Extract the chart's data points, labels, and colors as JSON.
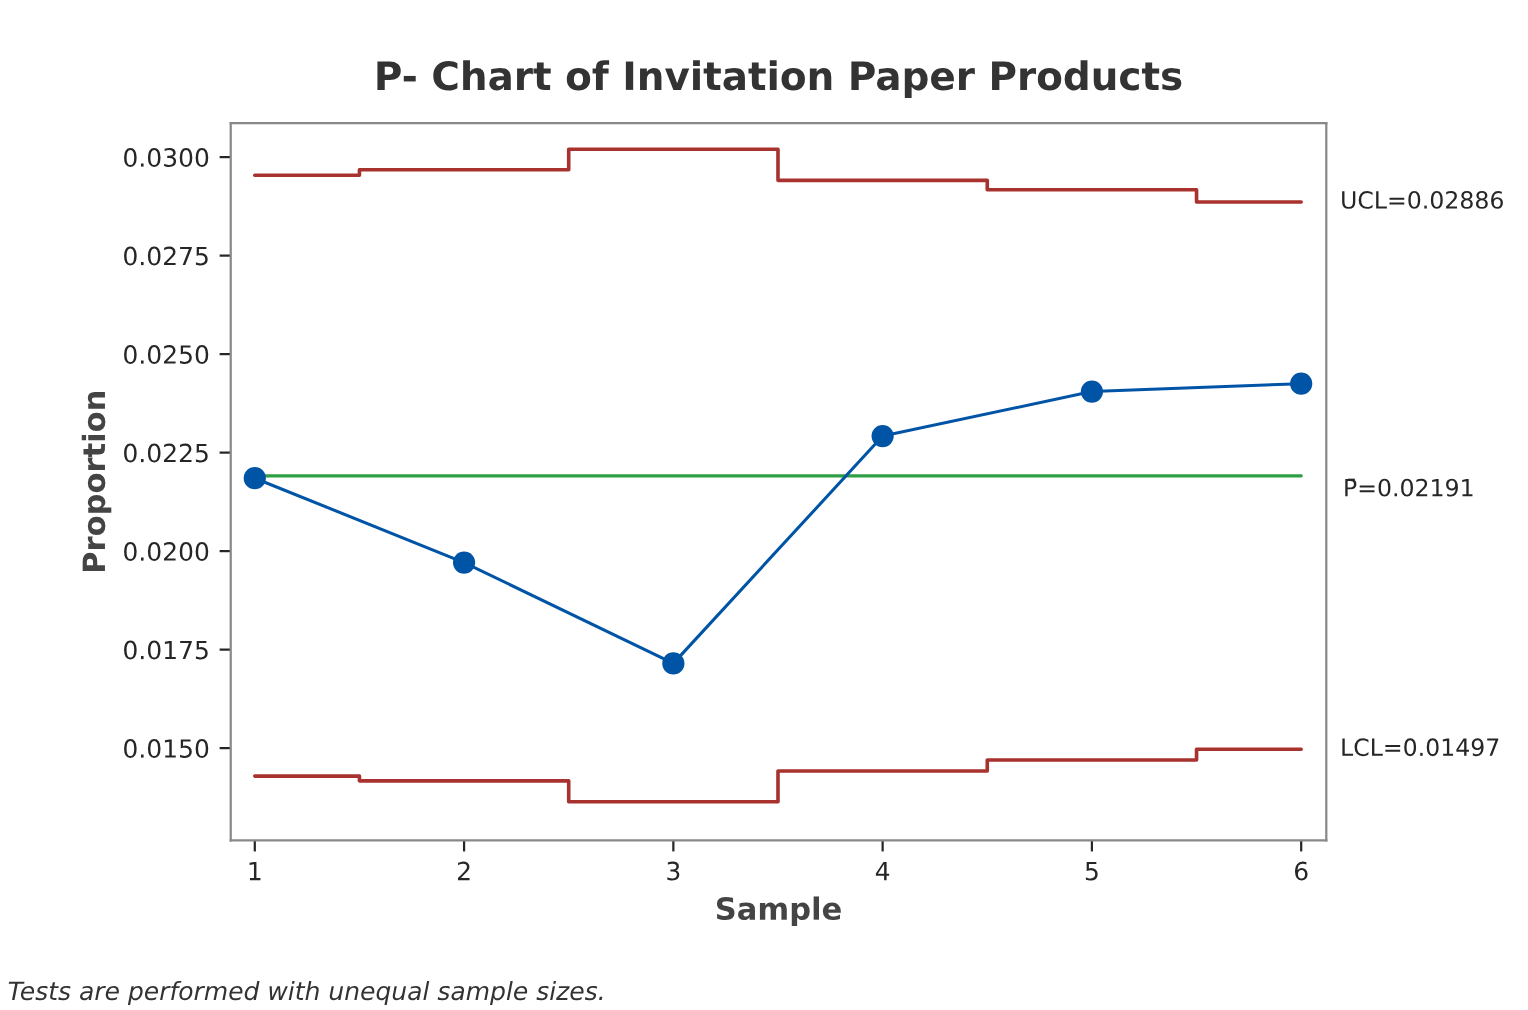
{
  "chart_data": {
    "type": "line",
    "title": "P- Chart of Invitation Paper Products",
    "xlabel": "Sample",
    "ylabel": "Proportion",
    "x": [
      1,
      2,
      3,
      4,
      5,
      6
    ],
    "series": [
      {
        "type": "step",
        "color": "#a8322d",
        "values": [
          0.02954,
          0.02968,
          0.0302,
          0.02941,
          0.02917,
          0.02886
        ]
      },
      {
        "type": "step",
        "color": "#a8322d",
        "values": [
          0.01429,
          0.01417,
          0.01364,
          0.01442,
          0.0147,
          0.01497
        ]
      },
      {
        "color": "#0054a6",
        "marker": "circle",
        "values": [
          0.02185,
          0.01971,
          0.01715,
          0.02292,
          0.02405,
          0.02425
        ]
      }
    ],
    "ref_lines": [
      {
        "axis": "y",
        "value": 0.02191,
        "label": "P̄=0.02191",
        "color": "#2e9e44"
      }
    ],
    "annotations": [
      {
        "text": "UCL=0.02886",
        "x": 6,
        "y": 0.02886
      },
      {
        "text": "LCL=0.01497",
        "x": 6,
        "y": 0.01497
      },
      "Tests are performed with unequal sample sizes."
    ],
    "xlim": [
      0.885,
      6.12
    ],
    "xticks": [
      1,
      2,
      3,
      4,
      5,
      6
    ],
    "ylim": [
      0.01266,
      0.03086
    ],
    "yticks": [
      {
        "value": 0.015,
        "label": "0.0150"
      },
      {
        "value": 0.0175,
        "label": "0.0175"
      },
      {
        "value": 0.02,
        "label": "0.0200"
      },
      {
        "value": 0.0225,
        "label": "0.0225"
      },
      {
        "value": 0.025,
        "label": "0.0250"
      },
      {
        "value": 0.0275,
        "label": "0.0275"
      },
      {
        "value": 0.03,
        "label": "0.0300"
      }
    ],
    "grid": false,
    "legend": false
  }
}
